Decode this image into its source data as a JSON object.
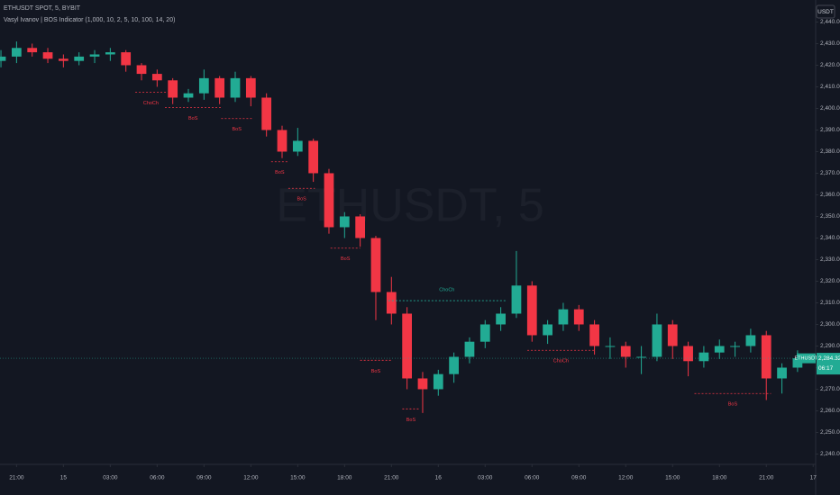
{
  "chart_data": {
    "type": "candlestick",
    "title": "ETHUSDT SPOT, 5, BYBIT",
    "subtitle": "Vasyl Ivanov | BOS Indicator (1,000, 10, 2, 5, 10, 100, 14, 20)",
    "watermark": "ETHUSDT, 5",
    "currency": "USDT",
    "symbol": "ETHUSDT",
    "countdown": "06:17",
    "last_price": {
      "value": 2284.32,
      "label": "2,284.32"
    },
    "up_color": "#22ab94",
    "down_color": "#f23645",
    "x": [
      0,
      1,
      2,
      3,
      4,
      5,
      6,
      7,
      8,
      9,
      10,
      11,
      12,
      13,
      14,
      15,
      16,
      17,
      18,
      19,
      20,
      21,
      22,
      23,
      24,
      25,
      26,
      27,
      28,
      29,
      30,
      31,
      32,
      33,
      34,
      35,
      36,
      37,
      38,
      39,
      40,
      41,
      42,
      43,
      44,
      45,
      46,
      47,
      48,
      49,
      50,
      51
    ],
    "open": [
      2422,
      2424,
      2428,
      2426,
      2423,
      2422,
      2424,
      2425,
      2426,
      2420,
      2416,
      2413,
      2405,
      2407,
      2414,
      2405,
      2414,
      2405,
      2390,
      2380,
      2385,
      2370,
      2345,
      2350,
      2340,
      2315,
      2305,
      2275,
      2270,
      2277,
      2285,
      2292,
      2300,
      2305,
      2318,
      2295,
      2300,
      2307,
      2300,
      2290,
      2290,
      2285,
      2285,
      2300,
      2290,
      2283,
      2287,
      2290,
      2290,
      2295,
      2275,
      2280
    ],
    "high": [
      2427,
      2431,
      2430,
      2428,
      2425,
      2426,
      2427,
      2428,
      2427,
      2421,
      2418,
      2414,
      2409,
      2418,
      2415,
      2417,
      2415,
      2407,
      2392,
      2391,
      2386,
      2372,
      2352,
      2351,
      2341,
      2322,
      2308,
      2278,
      2279,
      2287,
      2294,
      2302,
      2308,
      2334,
      2320,
      2302,
      2310,
      2309,
      2302,
      2294,
      2292,
      2290,
      2305,
      2302,
      2292,
      2290,
      2293,
      2292,
      2298,
      2297,
      2282,
      2288
    ],
    "low": [
      2419,
      2421,
      2424,
      2421,
      2419,
      2420,
      2421,
      2422,
      2417,
      2413,
      2410,
      2402,
      2403,
      2404,
      2402,
      2403,
      2401,
      2387,
      2377,
      2378,
      2366,
      2342,
      2340,
      2336,
      2302,
      2300,
      2270,
      2259,
      2267,
      2273,
      2282,
      2289,
      2297,
      2303,
      2292,
      2291,
      2297,
      2297,
      2286,
      2284,
      2280,
      2277,
      2283,
      2284,
      2276,
      2280,
      2284,
      2285,
      2287,
      2265,
      2268,
      2278
    ],
    "close": [
      2424,
      2428,
      2426,
      2423,
      2422,
      2424,
      2425,
      2426,
      2420,
      2416,
      2413,
      2405,
      2407,
      2414,
      2405,
      2414,
      2405,
      2390,
      2380,
      2385,
      2370,
      2345,
      2350,
      2340,
      2315,
      2305,
      2275,
      2270,
      2277,
      2285,
      2292,
      2300,
      2305,
      2318,
      2295,
      2300,
      2307,
      2300,
      2290,
      2290,
      2285,
      2285,
      2300,
      2290,
      2283,
      2287,
      2290,
      2290,
      2295,
      2275,
      2280,
      2284.32
    ],
    "xlim": [
      -0.06,
      52.16
    ],
    "ylim": [
      2235.2,
      2450.2
    ],
    "xticks": [
      {
        "value": 1,
        "label": "21:00"
      },
      {
        "value": 4,
        "label": "15"
      },
      {
        "value": 7,
        "label": "03:00"
      },
      {
        "value": 10,
        "label": "06:00"
      },
      {
        "value": 13,
        "label": "09:00"
      },
      {
        "value": 16,
        "label": "12:00"
      },
      {
        "value": 19,
        "label": "15:00"
      },
      {
        "value": 22,
        "label": "18:00"
      },
      {
        "value": 25,
        "label": "21:00"
      },
      {
        "value": 28,
        "label": "16"
      },
      {
        "value": 31,
        "label": "03:00"
      },
      {
        "value": 34,
        "label": "06:00"
      },
      {
        "value": 37,
        "label": "09:00"
      },
      {
        "value": 40,
        "label": "12:00"
      },
      {
        "value": 43,
        "label": "15:00"
      },
      {
        "value": 46,
        "label": "18:00"
      },
      {
        "value": 49,
        "label": "21:00"
      },
      {
        "value": 52,
        "label": "17"
      }
    ],
    "yticks": [
      {
        "value": 2240,
        "label": "2,240.00"
      },
      {
        "value": 2250,
        "label": "2,250.00"
      },
      {
        "value": 2260,
        "label": "2,260.00"
      },
      {
        "value": 2270,
        "label": "2,270.00"
      },
      {
        "value": 2280,
        "label": "2,280.00"
      },
      {
        "value": 2290,
        "label": "2,290.00"
      },
      {
        "value": 2300,
        "label": "2,300.00"
      },
      {
        "value": 2310,
        "label": "2,310.00"
      },
      {
        "value": 2320,
        "label": "2,320.00"
      },
      {
        "value": 2330,
        "label": "2,330.00"
      },
      {
        "value": 2340,
        "label": "2,340.00"
      },
      {
        "value": 2350,
        "label": "2,350.00"
      },
      {
        "value": 2360,
        "label": "2,360.00"
      },
      {
        "value": 2370,
        "label": "2,370.00"
      },
      {
        "value": 2380,
        "label": "2,380.00"
      },
      {
        "value": 2390,
        "label": "2,390.00"
      },
      {
        "value": 2400,
        "label": "2,400.00"
      },
      {
        "value": 2410,
        "label": "2,410.00"
      },
      {
        "value": 2420,
        "label": "2,420.00"
      },
      {
        "value": 2430,
        "label": "2,430.00"
      },
      {
        "value": 2440,
        "label": "2,440.00"
      }
    ],
    "annotations": [
      {
        "label": "ChoCh",
        "level": 2407.5,
        "start": 8.6,
        "end": 10.6,
        "color": "#f23645"
      },
      {
        "label": "BoS",
        "level": 2400.4,
        "start": 10.5,
        "end": 14.1,
        "color": "#f23645"
      },
      {
        "label": "BoS",
        "level": 2395.3,
        "start": 14.1,
        "end": 16.1,
        "color": "#f23645"
      },
      {
        "label": "BoS",
        "level": 2375.3,
        "start": 17.3,
        "end": 18.4,
        "color": "#f23645"
      },
      {
        "label": "BoS",
        "level": 2363,
        "start": 18.4,
        "end": 20.1,
        "color": "#f23645"
      },
      {
        "label": "BoS",
        "level": 2335.3,
        "start": 21.1,
        "end": 23.0,
        "color": "#f23645"
      },
      {
        "label": "ChoCh",
        "level": 2311,
        "start": 24.8,
        "end": 32.3,
        "color": "#22ab94"
      },
      {
        "label": "BoS",
        "level": 2283.4,
        "start": 23.0,
        "end": 25.0,
        "color": "#f23645"
      },
      {
        "label": "BoS",
        "level": 2260.9,
        "start": 25.7,
        "end": 26.8,
        "color": "#f23645"
      },
      {
        "label": "ChoCh",
        "level": 2288,
        "start": 33.7,
        "end": 38.0,
        "color": "#f23645"
      },
      {
        "label": "BoS",
        "level": 2268,
        "start": 44.4,
        "end": 49.3,
        "color": "#f23645"
      }
    ]
  }
}
